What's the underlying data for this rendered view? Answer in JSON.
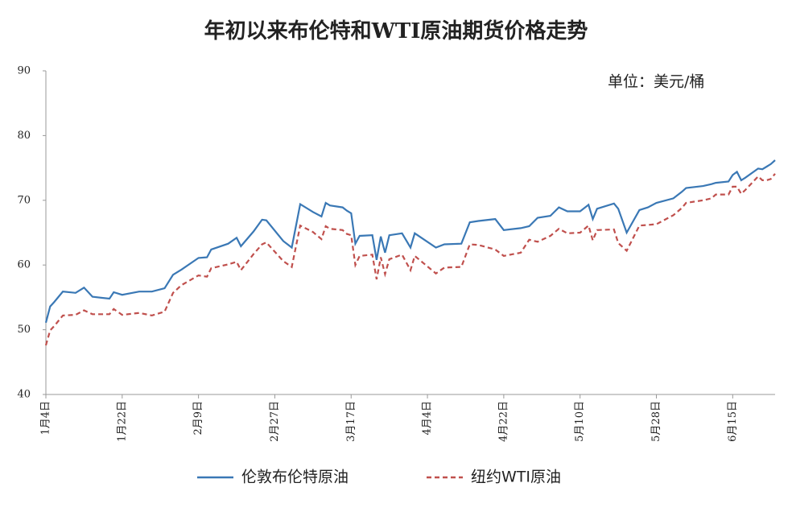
{
  "chart_data": {
    "type": "line",
    "title": "年初以来布伦特和WTI原油期货价格走势",
    "annotation": "单位：美元/桶",
    "x": [
      "01-04",
      "01-05",
      "01-06",
      "01-08",
      "01-11",
      "01-13",
      "01-15",
      "01-19",
      "01-20",
      "01-22",
      "01-26",
      "01-29",
      "02-01",
      "02-03",
      "02-05",
      "02-09",
      "02-11",
      "02-12",
      "02-16",
      "02-18",
      "02-19",
      "02-22",
      "02-24",
      "02-25",
      "03-01",
      "03-03",
      "03-05",
      "03-08",
      "03-10",
      "03-11",
      "03-12",
      "03-15",
      "03-16",
      "03-17",
      "03-18",
      "03-19",
      "03-22",
      "03-23",
      "03-24",
      "03-25",
      "03-26",
      "03-29",
      "03-31",
      "04-01",
      "04-06",
      "04-08",
      "04-12",
      "04-14",
      "04-16",
      "04-20",
      "04-22",
      "04-26",
      "04-28",
      "04-30",
      "05-03",
      "05-05",
      "05-07",
      "05-10",
      "05-12",
      "05-13",
      "05-14",
      "05-18",
      "05-19",
      "05-21",
      "05-24",
      "05-26",
      "05-28",
      "06-01",
      "06-03",
      "06-04",
      "06-08",
      "06-10",
      "06-11",
      "06-14",
      "06-15",
      "06-16",
      "06-17",
      "06-18",
      "06-21",
      "06-22",
      "06-23",
      "06-24",
      "06-25"
    ],
    "series": [
      {
        "name": "伦敦布伦特原油",
        "color": "#3a78b5",
        "dash": "solid",
        "values": [
          51.1,
          53.6,
          54.3,
          55.9,
          55.7,
          56.5,
          55.1,
          54.8,
          55.8,
          55.4,
          55.9,
          55.9,
          56.4,
          58.5,
          59.3,
          61.1,
          61.2,
          62.4,
          63.3,
          64.2,
          62.9,
          65.2,
          67.0,
          66.9,
          63.7,
          62.7,
          69.4,
          68.2,
          67.5,
          69.6,
          69.2,
          68.9,
          68.4,
          68.0,
          63.3,
          64.5,
          64.6,
          60.8,
          64.4,
          61.9,
          64.6,
          64.9,
          62.7,
          64.9,
          62.7,
          63.2,
          63.3,
          66.6,
          66.8,
          67.1,
          65.4,
          65.7,
          66.0,
          67.3,
          67.6,
          68.9,
          68.3,
          68.3,
          69.3,
          67.1,
          68.7,
          69.5,
          68.7,
          65.0,
          68.5,
          68.9,
          69.6,
          70.3,
          71.3,
          71.9,
          72.2,
          72.5,
          72.7,
          72.9,
          73.9,
          74.4,
          73.1,
          73.5,
          74.9,
          74.8,
          75.2,
          75.6,
          76.2
        ]
      },
      {
        "name": "纽约WTI原油",
        "color": "#c0504d",
        "dash": "dashed",
        "values": [
          47.6,
          49.9,
          50.6,
          52.2,
          52.3,
          53.0,
          52.4,
          52.4,
          53.2,
          52.3,
          52.6,
          52.2,
          52.8,
          55.7,
          56.9,
          58.4,
          58.2,
          59.5,
          60.1,
          60.5,
          59.2,
          61.7,
          63.2,
          63.5,
          60.6,
          59.7,
          66.1,
          65.1,
          64.0,
          66.0,
          65.6,
          65.4,
          64.8,
          64.6,
          60.0,
          61.4,
          61.6,
          57.8,
          61.2,
          58.6,
          60.9,
          61.6,
          59.2,
          61.4,
          58.7,
          59.6,
          59.7,
          63.2,
          63.1,
          62.4,
          61.4,
          61.9,
          63.9,
          63.6,
          64.5,
          65.6,
          64.9,
          65.0,
          66.1,
          63.8,
          65.4,
          65.5,
          63.4,
          62.2,
          66.1,
          66.2,
          66.3,
          67.7,
          68.8,
          69.6,
          70.0,
          70.3,
          70.9,
          70.9,
          72.1,
          72.1,
          71.0,
          71.6,
          73.7,
          73.1,
          73.1,
          73.3,
          74.1
        ]
      }
    ],
    "xlim": [
      "01-04",
      "06-25"
    ],
    "xticks": [
      {
        "value": "01-04",
        "label": "1月4日"
      },
      {
        "value": "01-22",
        "label": "1月22日"
      },
      {
        "value": "02-09",
        "label": "2月9日"
      },
      {
        "value": "02-27",
        "label": "2月27日"
      },
      {
        "value": "03-17",
        "label": "3月17日"
      },
      {
        "value": "04-04",
        "label": "4月4日"
      },
      {
        "value": "04-22",
        "label": "4月22日"
      },
      {
        "value": "05-10",
        "label": "5月10日"
      },
      {
        "value": "05-28",
        "label": "5月28日"
      },
      {
        "value": "06-15",
        "label": "6月15日"
      }
    ],
    "ylim": [
      40,
      90
    ],
    "yticks": [
      40,
      50,
      60,
      70,
      80,
      90
    ],
    "grid": false,
    "legend": "bottom"
  }
}
